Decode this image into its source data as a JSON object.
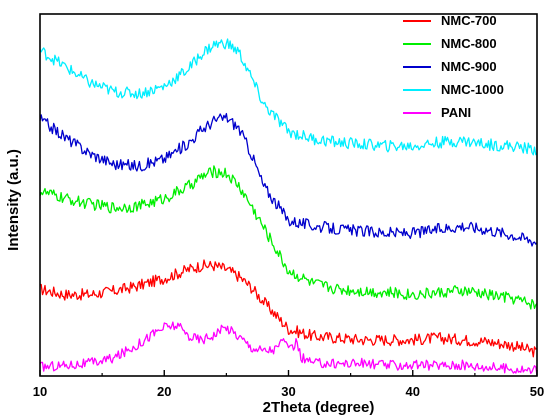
{
  "chart_data": {
    "type": "line",
    "xlabel": "2Theta (degree)",
    "ylabel": "Intensity (a.u.)",
    "xlim": [
      10,
      50
    ],
    "ylim": [
      0,
      100
    ],
    "xticks": [
      10,
      20,
      30,
      40,
      50
    ],
    "yticks_shown": false,
    "grid": false,
    "legend_position": "top-right",
    "series": [
      {
        "name": "NMC-700",
        "color": "#ff0000",
        "x": [
          10,
          12,
          14,
          16,
          18,
          20,
          22,
          23,
          24,
          25,
          26,
          27,
          28,
          30,
          32,
          34,
          36,
          38,
          40,
          42,
          44,
          46,
          48,
          50
        ],
        "y": [
          24,
          22.5,
          22.5,
          23.5,
          25,
          27,
          29.5,
          30.5,
          30.5,
          29.5,
          27.5,
          24.5,
          20.5,
          13,
          11,
          10.5,
          10,
          10,
          10,
          10.5,
          10,
          9.5,
          8.5,
          6.5
        ]
      },
      {
        "name": "NMC-800",
        "color": "#00ee00",
        "x": [
          10,
          12,
          14,
          16,
          18,
          20,
          22,
          23,
          24,
          25,
          26,
          27,
          28,
          30,
          32,
          34,
          36,
          38,
          40,
          42,
          44,
          46,
          48,
          50
        ],
        "y": [
          51,
          49,
          47.5,
          46.5,
          47,
          49,
          52.5,
          55,
          56.5,
          56,
          52.5,
          47,
          41,
          29,
          25.5,
          24,
          23.5,
          23,
          22.5,
          23,
          23.5,
          22.5,
          21.5,
          19.5
        ]
      },
      {
        "name": "NMC-900",
        "color": "#0000cc",
        "x": [
          10,
          12,
          14,
          16,
          18,
          20,
          22,
          23,
          24,
          25,
          26,
          27,
          28,
          30,
          32,
          34,
          36,
          38,
          40,
          42,
          44,
          46,
          48,
          50
        ],
        "y": [
          71,
          66,
          61.5,
          58.5,
          58,
          60,
          64.5,
          68,
          70.5,
          71.5,
          68.5,
          61.5,
          52.5,
          43,
          41.5,
          40.5,
          40,
          39.5,
          39.5,
          40.5,
          41.5,
          40.5,
          39,
          37
        ]
      },
      {
        "name": "NMC-1000",
        "color": "#00eeff",
        "x": [
          10,
          12,
          14,
          16,
          18,
          20,
          22,
          23,
          24,
          25,
          26,
          27,
          28,
          30,
          32,
          34,
          36,
          38,
          40,
          42,
          44,
          46,
          48,
          50
        ],
        "y": [
          90,
          85.5,
          81,
          78.5,
          78,
          80,
          85,
          89,
          91.5,
          92,
          89.5,
          82.5,
          75,
          67.5,
          65.5,
          64.5,
          64,
          63.5,
          63.5,
          64.5,
          65,
          64,
          63.5,
          62.5
        ]
      },
      {
        "name": "PANI",
        "color": "#ff00ff",
        "x": [
          10,
          12,
          14,
          16,
          17,
          18,
          19,
          20,
          21,
          22,
          23,
          24,
          25,
          26,
          27,
          28,
          29,
          29.7,
          30,
          30.7,
          31,
          32,
          34,
          36,
          38,
          40,
          42,
          44,
          46,
          48,
          50
        ],
        "y": [
          2.5,
          3,
          3.5,
          5,
          7,
          9,
          11.5,
          13.5,
          14,
          11,
          10,
          11.5,
          13.5,
          11,
          8,
          7,
          7.5,
          10.5,
          6.5,
          9.5,
          5,
          3.5,
          3.5,
          3.5,
          3,
          3,
          3,
          3,
          2.5,
          2,
          1.5
        ]
      }
    ]
  }
}
